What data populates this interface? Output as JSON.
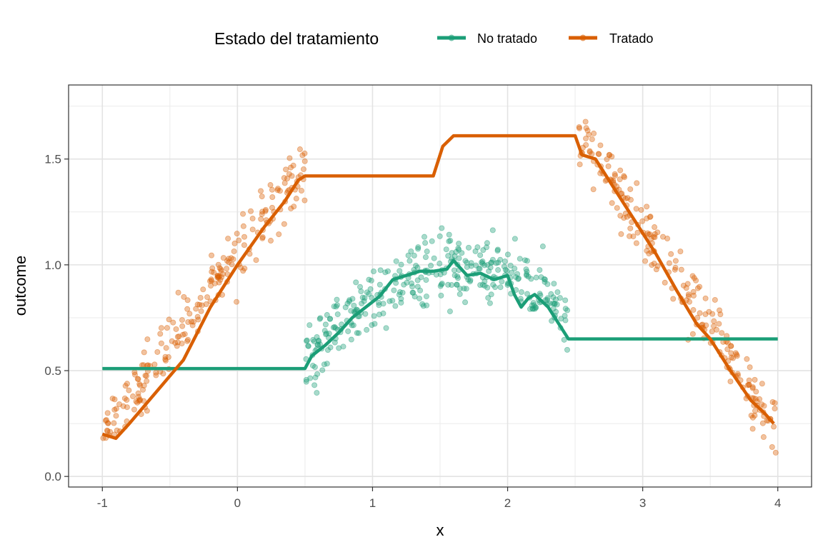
{
  "chart_data": {
    "type": "scatter",
    "title": "",
    "xlabel": "x",
    "ylabel": "outcome",
    "xlim": [
      -1.25,
      4.25
    ],
    "ylim": [
      -0.05,
      1.85
    ],
    "x_ticks": [
      -1,
      0,
      1,
      2,
      3,
      4
    ],
    "x_tick_labels": [
      "-1",
      "0",
      "1",
      "2",
      "3",
      "4"
    ],
    "y_ticks": [
      0.0,
      0.5,
      1.0,
      1.5
    ],
    "y_tick_labels": [
      "0.0",
      "0.5",
      "1.0",
      "1.5"
    ],
    "grid": true,
    "legend": {
      "title": "Estado del tratamiento",
      "position": "top",
      "entries": [
        "No tratado",
        "Tratado"
      ]
    },
    "series": [
      {
        "name": "No tratado",
        "color": "#1b9e77",
        "points_x_range": [
          0.5,
          2.5
        ],
        "points_shape": "inverted parabola peaking near x=1.6, y≈1.0",
        "line": {
          "x": [
            -1.0,
            0.5,
            0.55,
            0.65,
            0.75,
            0.85,
            0.95,
            1.05,
            1.15,
            1.25,
            1.35,
            1.45,
            1.55,
            1.6,
            1.7,
            1.8,
            1.9,
            2.0,
            2.05,
            2.1,
            2.15,
            2.2,
            2.3,
            2.4,
            2.45,
            4.0
          ],
          "y": [
            0.51,
            0.51,
            0.57,
            0.62,
            0.68,
            0.75,
            0.8,
            0.85,
            0.93,
            0.95,
            0.97,
            0.97,
            0.98,
            1.02,
            0.95,
            0.96,
            0.93,
            0.95,
            0.86,
            0.8,
            0.84,
            0.86,
            0.8,
            0.7,
            0.65,
            0.65
          ]
        }
      },
      {
        "name": "Tratado",
        "color": "#d95f02",
        "points_x_range": [
          [
            -1.0,
            0.5
          ],
          [
            2.5,
            4.0
          ]
        ],
        "points_shape": "rising linearly from 0.2 to 1.45 on [-1, 0.5]; falling from 1.65 to 0.2 on [2.5, 4]",
        "line": {
          "x": [
            -1.0,
            -0.9,
            -0.8,
            -0.6,
            -0.4,
            -0.2,
            0.0,
            0.2,
            0.35,
            0.45,
            0.5,
            1.45,
            1.52,
            1.6,
            2.5,
            2.55,
            2.65,
            2.8,
            2.95,
            3.1,
            3.25,
            3.4,
            3.5,
            3.65,
            3.8,
            3.9,
            3.97
          ],
          "y": [
            0.2,
            0.18,
            0.25,
            0.4,
            0.55,
            0.8,
            1.0,
            1.18,
            1.3,
            1.4,
            1.42,
            1.42,
            1.56,
            1.61,
            1.61,
            1.52,
            1.5,
            1.35,
            1.2,
            1.05,
            0.88,
            0.72,
            0.65,
            0.5,
            0.36,
            0.3,
            0.25
          ]
        }
      }
    ]
  }
}
